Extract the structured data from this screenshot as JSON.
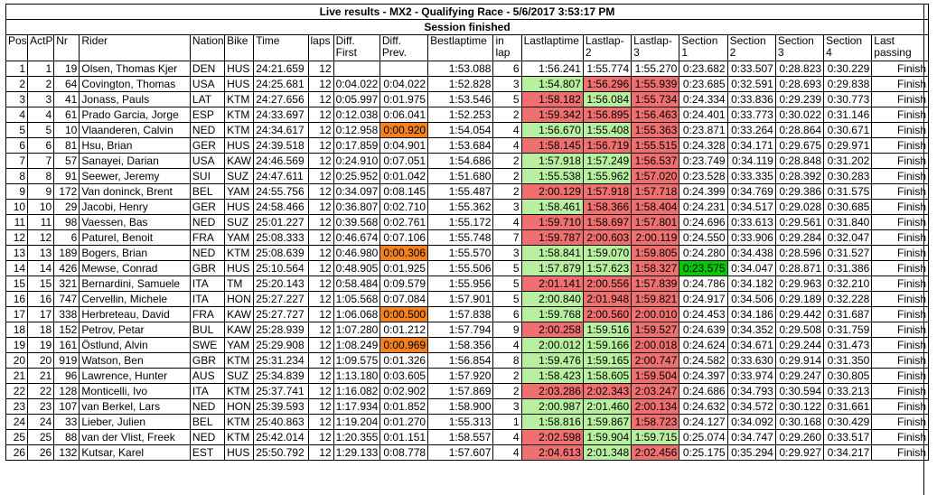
{
  "banner": {
    "title": "Live results - MX2 - Qualifying Race - 5/6/2017 3:53:17 PM",
    "status": "Session finished"
  },
  "colors": {
    "best_sector": "#00c800",
    "faster": "#b8f0a0",
    "slower": "#f07070",
    "improved_gap": "#f58220"
  },
  "headers": [
    "Pos",
    "ActP",
    "Nr",
    "Rider",
    "Nation",
    "Bike",
    "Time",
    "laps",
    "Diff. First",
    "Diff. Prev.",
    "Bestlaptime",
    "in lap",
    "Lastlaptime",
    "Lastlap-2",
    "Lastlap-3",
    "Section 1",
    "Section 2",
    "Section 3",
    "Section 4",
    "Last passing"
  ],
  "rows": [
    {
      "pos": "1",
      "actp": "1",
      "nr": "19",
      "rider": "Olsen, Thomas Kjer",
      "nation": "DEN",
      "bike": "HUS",
      "time": "24:21.659",
      "laps": "12",
      "diff_first": "",
      "diff_prev": "",
      "best": "1:53.088",
      "inlap": "6",
      "last": "1:56.241",
      "last2": "1:55.774",
      "last3": "1:55.270",
      "s1": "0:23.682",
      "s2": "0:33.507",
      "s3": "0:28.823",
      "s4": "0:30.229",
      "passing": "Finish"
    },
    {
      "pos": "2",
      "actp": "2",
      "nr": "64",
      "rider": "Covington, Thomas",
      "nation": "USA",
      "bike": "HUS",
      "time": "24:25.681",
      "laps": "12",
      "diff_first": "0:04.022",
      "diff_prev": "0:04.022",
      "best": "1:52.828",
      "inlap": "3",
      "last": "1:54.807",
      "last2": "1:56.296",
      "last3": "1:55.939",
      "s1": "0:23.685",
      "s2": "0:32.591",
      "s3": "0:28.693",
      "s4": "0:29.838",
      "passing": "Finish",
      "c_last": "fast",
      "c_last2": "slow",
      "c_last3": "slow"
    },
    {
      "pos": "3",
      "actp": "3",
      "nr": "41",
      "rider": "Jonass, Pauls",
      "nation": "LAT",
      "bike": "KTM",
      "time": "24:27.656",
      "laps": "12",
      "diff_first": "0:05.997",
      "diff_prev": "0:01.975",
      "best": "1:53.546",
      "inlap": "5",
      "last": "1:58.182",
      "last2": "1:56.084",
      "last3": "1:55.734",
      "s1": "0:24.334",
      "s2": "0:33.836",
      "s3": "0:29.239",
      "s4": "0:30.773",
      "passing": "Finish",
      "c_last": "slow",
      "c_last2": "fast",
      "c_last3": "slow"
    },
    {
      "pos": "4",
      "actp": "4",
      "nr": "61",
      "rider": "Prado Garcia, Jorge",
      "nation": "ESP",
      "bike": "KTM",
      "time": "24:33.697",
      "laps": "12",
      "diff_first": "0:12.038",
      "diff_prev": "0:06.041",
      "best": "1:52.253",
      "inlap": "2",
      "last": "1:59.342",
      "last2": "1:56.895",
      "last3": "1:56.463",
      "s1": "0:24.401",
      "s2": "0:33.773",
      "s3": "0:30.022",
      "s4": "0:31.146",
      "passing": "Finish",
      "c_last": "slow",
      "c_last2": "slow",
      "c_last3": "slow"
    },
    {
      "pos": "5",
      "actp": "5",
      "nr": "10",
      "rider": "Vlaanderen, Calvin",
      "nation": "NED",
      "bike": "KTM",
      "time": "24:34.617",
      "laps": "12",
      "diff_first": "0:12.958",
      "diff_prev": "0:00.920",
      "best": "1:54.054",
      "inlap": "4",
      "last": "1:56.670",
      "last2": "1:55.408",
      "last3": "1:55.363",
      "s1": "0:23.871",
      "s2": "0:33.264",
      "s3": "0:28.864",
      "s4": "0:30.671",
      "passing": "Finish",
      "c_diff_prev": "imp",
      "c_last": "fast",
      "c_last2": "fast",
      "c_last3": "slow"
    },
    {
      "pos": "6",
      "actp": "6",
      "nr": "81",
      "rider": "Hsu, Brian",
      "nation": "GER",
      "bike": "HUS",
      "time": "24:39.518",
      "laps": "12",
      "diff_first": "0:17.859",
      "diff_prev": "0:04.901",
      "best": "1:53.684",
      "inlap": "4",
      "last": "1:58.145",
      "last2": "1:56.719",
      "last3": "1:55.515",
      "s1": "0:24.328",
      "s2": "0:34.171",
      "s3": "0:29.675",
      "s4": "0:29.971",
      "passing": "Finish",
      "c_last": "slow",
      "c_last2": "slow",
      "c_last3": "slow"
    },
    {
      "pos": "7",
      "actp": "7",
      "nr": "57",
      "rider": "Sanayei, Darian",
      "nation": "USA",
      "bike": "KAW",
      "time": "24:46.569",
      "laps": "12",
      "diff_first": "0:24.910",
      "diff_prev": "0:07.051",
      "best": "1:54.686",
      "inlap": "2",
      "last": "1:57.918",
      "last2": "1:57.249",
      "last3": "1:56.537",
      "s1": "0:23.749",
      "s2": "0:34.119",
      "s3": "0:28.848",
      "s4": "0:31.202",
      "passing": "Finish",
      "c_last": "fast",
      "c_last2": "fast",
      "c_last3": "slow"
    },
    {
      "pos": "8",
      "actp": "8",
      "nr": "91",
      "rider": "Seewer, Jeremy",
      "nation": "SUI",
      "bike": "SUZ",
      "time": "24:47.611",
      "laps": "12",
      "diff_first": "0:25.952",
      "diff_prev": "0:01.042",
      "best": "1:51.680",
      "inlap": "2",
      "last": "1:55.538",
      "last2": "1:55.962",
      "last3": "1:57.020",
      "s1": "0:23.528",
      "s2": "0:33.335",
      "s3": "0:28.392",
      "s4": "0:30.283",
      "passing": "Finish",
      "c_last": "fast",
      "c_last2": "fast",
      "c_last3": "slow"
    },
    {
      "pos": "9",
      "actp": "9",
      "nr": "172",
      "rider": "Van doninck, Brent",
      "nation": "BEL",
      "bike": "YAM",
      "time": "24:55.756",
      "laps": "12",
      "diff_first": "0:34.097",
      "diff_prev": "0:08.145",
      "best": "1:55.487",
      "inlap": "2",
      "last": "2:00.129",
      "last2": "1:57.918",
      "last3": "1:57.718",
      "s1": "0:24.399",
      "s2": "0:34.769",
      "s3": "0:29.386",
      "s4": "0:31.575",
      "passing": "Finish",
      "c_last": "slow",
      "c_last2": "slow",
      "c_last3": "slow"
    },
    {
      "pos": "10",
      "actp": "10",
      "nr": "29",
      "rider": "Jacobi, Henry",
      "nation": "GER",
      "bike": "HUS",
      "time": "24:58.466",
      "laps": "12",
      "diff_first": "0:36.807",
      "diff_prev": "0:02.710",
      "best": "1:55.362",
      "inlap": "3",
      "last": "1:58.461",
      "last2": "1:58.366",
      "last3": "1:58.404",
      "s1": "0:24.231",
      "s2": "0:34.517",
      "s3": "0:29.028",
      "s4": "0:30.685",
      "passing": "Finish",
      "c_last": "fast",
      "c_last2": "slow",
      "c_last3": "slow"
    },
    {
      "pos": "11",
      "actp": "11",
      "nr": "98",
      "rider": "Vaessen, Bas",
      "nation": "NED",
      "bike": "SUZ",
      "time": "25:01.227",
      "laps": "12",
      "diff_first": "0:39.568",
      "diff_prev": "0:02.761",
      "best": "1:55.172",
      "inlap": "4",
      "last": "1:59.710",
      "last2": "1:58.697",
      "last3": "1:57.801",
      "s1": "0:24.696",
      "s2": "0:33.613",
      "s3": "0:29.561",
      "s4": "0:31.840",
      "passing": "Finish",
      "c_last": "slow",
      "c_last2": "slow",
      "c_last3": "slow"
    },
    {
      "pos": "12",
      "actp": "12",
      "nr": "6",
      "rider": "Paturel, Benoit",
      "nation": "FRA",
      "bike": "YAM",
      "time": "25:08.333",
      "laps": "12",
      "diff_first": "0:46.674",
      "diff_prev": "0:07.106",
      "best": "1:55.748",
      "inlap": "7",
      "last": "1:59.787",
      "last2": "2:00.603",
      "last3": "2:00.119",
      "s1": "0:24.550",
      "s2": "0:33.906",
      "s3": "0:29.284",
      "s4": "0:32.047",
      "passing": "Finish",
      "c_last": "slow",
      "c_last2": "slow",
      "c_last3": "slow"
    },
    {
      "pos": "13",
      "actp": "13",
      "nr": "189",
      "rider": "Bogers, Brian",
      "nation": "NED",
      "bike": "KTM",
      "time": "25:08.639",
      "laps": "12",
      "diff_first": "0:46.980",
      "diff_prev": "0:00.306",
      "best": "1:55.570",
      "inlap": "3",
      "last": "1:58.841",
      "last2": "1:59.070",
      "last3": "1:59.805",
      "s1": "0:24.280",
      "s2": "0:34.438",
      "s3": "0:28.596",
      "s4": "0:31.527",
      "passing": "Finish",
      "c_diff_prev": "imp",
      "c_last": "fast",
      "c_last2": "fast",
      "c_last3": "slow"
    },
    {
      "pos": "14",
      "actp": "14",
      "nr": "426",
      "rider": "Mewse, Conrad",
      "nation": "GBR",
      "bike": "HUS",
      "time": "25:10.564",
      "laps": "12",
      "diff_first": "0:48.905",
      "diff_prev": "0:01.925",
      "best": "1:55.506",
      "inlap": "5",
      "last": "1:57.879",
      "last2": "1:57.623",
      "last3": "1:58.327",
      "s1": "0:23.575",
      "s2": "0:34.047",
      "s3": "0:28.871",
      "s4": "0:31.386",
      "passing": "Finish",
      "c_last": "fast",
      "c_last2": "fast",
      "c_last3": "slow",
      "c_s1": "best"
    },
    {
      "pos": "15",
      "actp": "15",
      "nr": "321",
      "rider": "Bernardini, Samuele",
      "nation": "ITA",
      "bike": "TM",
      "time": "25:20.143",
      "laps": "12",
      "diff_first": "0:58.484",
      "diff_prev": "0:09.579",
      "best": "1:55.956",
      "inlap": "5",
      "last": "2:01.141",
      "last2": "2:00.556",
      "last3": "1:57.839",
      "s1": "0:24.786",
      "s2": "0:34.182",
      "s3": "0:29.963",
      "s4": "0:32.210",
      "passing": "Finish",
      "c_last": "slow",
      "c_last2": "slow",
      "c_last3": "slow"
    },
    {
      "pos": "16",
      "actp": "16",
      "nr": "747",
      "rider": "Cervellin, Michele",
      "nation": "ITA",
      "bike": "HON",
      "time": "25:27.227",
      "laps": "12",
      "diff_first": "1:05.568",
      "diff_prev": "0:07.084",
      "best": "1:57.901",
      "inlap": "5",
      "last": "2:00.840",
      "last2": "2:01.948",
      "last3": "1:59.821",
      "s1": "0:24.917",
      "s2": "0:34.506",
      "s3": "0:29.189",
      "s4": "0:32.228",
      "passing": "Finish",
      "c_last": "fast",
      "c_last2": "slow",
      "c_last3": "slow"
    },
    {
      "pos": "17",
      "actp": "17",
      "nr": "338",
      "rider": "Herbreteau, David",
      "nation": "FRA",
      "bike": "KAW",
      "time": "25:27.727",
      "laps": "12",
      "diff_first": "1:06.068",
      "diff_prev": "0:00.500",
      "best": "1:57.838",
      "inlap": "6",
      "last": "1:59.768",
      "last2": "2:00.560",
      "last3": "2:00.010",
      "s1": "0:24.453",
      "s2": "0:34.186",
      "s3": "0:29.442",
      "s4": "0:31.687",
      "passing": "Finish",
      "c_diff_prev": "imp",
      "c_last": "fast",
      "c_last2": "slow",
      "c_last3": "slow"
    },
    {
      "pos": "18",
      "actp": "18",
      "nr": "152",
      "rider": "Petrov, Petar",
      "nation": "BUL",
      "bike": "KAW",
      "time": "25:28.939",
      "laps": "12",
      "diff_first": "1:07.280",
      "diff_prev": "0:01.212",
      "best": "1:57.794",
      "inlap": "9",
      "last": "2:00.258",
      "last2": "1:59.516",
      "last3": "1:59.527",
      "s1": "0:24.639",
      "s2": "0:34.352",
      "s3": "0:29.508",
      "s4": "0:31.759",
      "passing": "Finish",
      "c_last": "slow",
      "c_last2": "fast",
      "c_last3": "slow"
    },
    {
      "pos": "19",
      "actp": "19",
      "nr": "161",
      "rider": "Östlund, Alvin",
      "nation": "SWE",
      "bike": "YAM",
      "time": "25:29.908",
      "laps": "12",
      "diff_first": "1:08.249",
      "diff_prev": "0:00.969",
      "best": "1:58.356",
      "inlap": "4",
      "last": "2:00.012",
      "last2": "1:59.166",
      "last3": "2:00.018",
      "s1": "0:24.624",
      "s2": "0:34.671",
      "s3": "0:29.244",
      "s4": "0:31.473",
      "passing": "Finish",
      "c_diff_prev": "imp",
      "c_last": "fast",
      "c_last2": "fast",
      "c_last3": "slow"
    },
    {
      "pos": "20",
      "actp": "20",
      "nr": "919",
      "rider": "Watson, Ben",
      "nation": "GBR",
      "bike": "KTM",
      "time": "25:31.234",
      "laps": "12",
      "diff_first": "1:09.575",
      "diff_prev": "0:01.326",
      "best": "1:56.854",
      "inlap": "8",
      "last": "1:59.476",
      "last2": "1:59.165",
      "last3": "2:00.747",
      "s1": "0:24.582",
      "s2": "0:33.630",
      "s3": "0:29.914",
      "s4": "0:31.350",
      "passing": "Finish",
      "c_last": "fast",
      "c_last2": "fast",
      "c_last3": "slow"
    },
    {
      "pos": "21",
      "actp": "21",
      "nr": "96",
      "rider": "Lawrence, Hunter",
      "nation": "AUS",
      "bike": "SUZ",
      "time": "25:34.839",
      "laps": "12",
      "diff_first": "1:13.180",
      "diff_prev": "0:03.605",
      "best": "1:57.920",
      "inlap": "2",
      "last": "1:58.423",
      "last2": "1:58.605",
      "last3": "1:59.504",
      "s1": "0:24.397",
      "s2": "0:33.974",
      "s3": "0:29.247",
      "s4": "0:30.805",
      "passing": "Finish",
      "c_last": "fast",
      "c_last2": "fast",
      "c_last3": "slow"
    },
    {
      "pos": "22",
      "actp": "22",
      "nr": "128",
      "rider": "Monticelli, Ivo",
      "nation": "ITA",
      "bike": "KTM",
      "time": "25:37.741",
      "laps": "12",
      "diff_first": "1:16.082",
      "diff_prev": "0:02.902",
      "best": "1:57.869",
      "inlap": "2",
      "last": "2:03.286",
      "last2": "2:02.343",
      "last3": "2:03.247",
      "s1": "0:24.686",
      "s2": "0:34.793",
      "s3": "0:30.594",
      "s4": "0:33.213",
      "passing": "Finish",
      "c_last": "slow",
      "c_last2": "slow",
      "c_last3": "slow"
    },
    {
      "pos": "23",
      "actp": "23",
      "nr": "107",
      "rider": "van Berkel, Lars",
      "nation": "NED",
      "bike": "HON",
      "time": "25:39.593",
      "laps": "12",
      "diff_first": "1:17.934",
      "diff_prev": "0:01.852",
      "best": "1:58.900",
      "inlap": "3",
      "last": "2:00.987",
      "last2": "2:01.460",
      "last3": "2:00.134",
      "s1": "0:24.632",
      "s2": "0:34.572",
      "s3": "0:30.122",
      "s4": "0:31.661",
      "passing": "Finish",
      "c_last": "fast",
      "c_last2": "fast",
      "c_last3": "slow"
    },
    {
      "pos": "24",
      "actp": "24",
      "nr": "33",
      "rider": "Lieber, Julien",
      "nation": "BEL",
      "bike": "KTM",
      "time": "25:40.863",
      "laps": "12",
      "diff_first": "1:19.204",
      "diff_prev": "0:01.270",
      "best": "1:55.313",
      "inlap": "1",
      "last": "1:58.816",
      "last2": "1:59.867",
      "last3": "1:58.723",
      "s1": "0:24.127",
      "s2": "0:34.092",
      "s3": "0:30.168",
      "s4": "0:30.429",
      "passing": "Finish",
      "c_last": "fast",
      "c_last2": "fast",
      "c_last3": "slow"
    },
    {
      "pos": "25",
      "actp": "25",
      "nr": "88",
      "rider": "van der Vlist, Freek",
      "nation": "NED",
      "bike": "KTM",
      "time": "25:42.014",
      "laps": "12",
      "diff_first": "1:20.355",
      "diff_prev": "0:01.151",
      "best": "1:58.557",
      "inlap": "4",
      "last": "2:02.598",
      "last2": "1:59.904",
      "last3": "1:59.715",
      "s1": "0:25.074",
      "s2": "0:34.747",
      "s3": "0:29.260",
      "s4": "0:33.517",
      "passing": "Finish",
      "c_last": "slow",
      "c_last2": "fast",
      "c_last3": "fast"
    },
    {
      "pos": "26",
      "actp": "26",
      "nr": "132",
      "rider": "Kutsar, Karel",
      "nation": "EST",
      "bike": "HUS",
      "time": "25:50.792",
      "laps": "12",
      "diff_first": "1:29.133",
      "diff_prev": "0:08.778",
      "best": "1:57.607",
      "inlap": "4",
      "last": "2:04.613",
      "last2": "2:01.348",
      "last3": "2:02.456",
      "s1": "0:25.175",
      "s2": "0:35.294",
      "s3": "0:29.927",
      "s4": "0:34.217",
      "passing": "Finish",
      "c_last": "slow",
      "c_last2": "fast",
      "c_last3": "slow"
    }
  ]
}
